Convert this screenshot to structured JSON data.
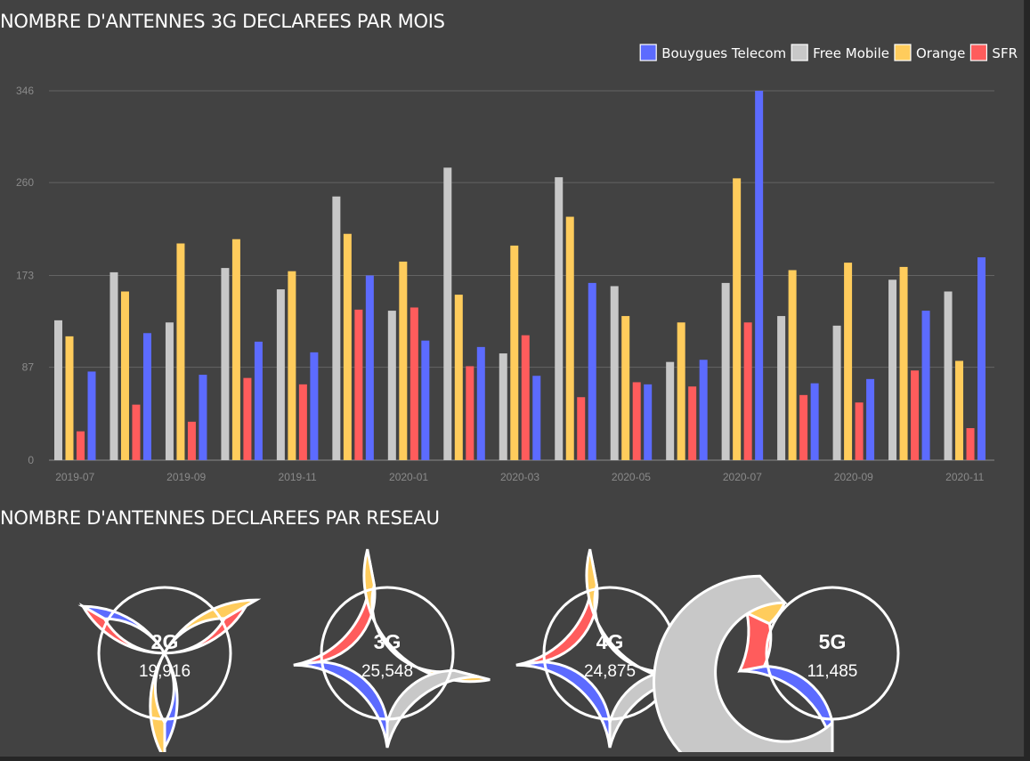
{
  "titles": {
    "bar_section": "NOMBRE D'ANTENNES 3G DECLAREES PAR MOIS",
    "donut_section": "NOMBRE D'ANTENNES DECLAREES PAR RESEAU"
  },
  "chart_data": [
    {
      "type": "bar",
      "title": "NOMBRE D'ANTENNES 3G DECLAREES PAR MOIS",
      "months": [
        "2019-07",
        "2019-08",
        "2019-09",
        "2019-10",
        "2019-11",
        "2019-12",
        "2020-01",
        "2020-02",
        "2020-03",
        "2020-04",
        "2020-05",
        "2020-06",
        "2020-07",
        "2020-08",
        "2020-09",
        "2020-10",
        "2020-11"
      ],
      "x_tick_labels": [
        "2019-07",
        "2019-09",
        "2019-11",
        "2020-01",
        "2020-03",
        "2020-05",
        "2020-07",
        "2020-09",
        "2020-11"
      ],
      "y_ticks": [
        0,
        87,
        173,
        260,
        346
      ],
      "ylim": [
        0,
        346
      ],
      "grid": true,
      "legend_position": "top-right",
      "series": [
        {
          "name": "Free Mobile",
          "color": "#c8c8c8",
          "values": [
            131,
            176,
            129,
            180,
            160,
            247,
            140,
            274,
            100,
            265,
            163,
            92,
            166,
            135,
            126,
            169,
            158
          ]
        },
        {
          "name": "Orange",
          "color": "#ffcc5c",
          "values": [
            116,
            158,
            203,
            207,
            177,
            212,
            186,
            155,
            201,
            228,
            135,
            129,
            264,
            178,
            185,
            181,
            93
          ]
        },
        {
          "name": "SFR",
          "color": "#ff5c5c",
          "values": [
            27,
            52,
            36,
            77,
            71,
            141,
            143,
            88,
            117,
            59,
            73,
            69,
            129,
            61,
            54,
            84,
            30
          ]
        },
        {
          "name": "Bouygues Telecom",
          "color": "#5c6bff",
          "values": [
            83,
            119,
            80,
            111,
            101,
            173,
            112,
            106,
            79,
            166,
            71,
            94,
            346,
            72,
            76,
            140,
            190
          ]
        }
      ],
      "legend_order": [
        "Bouygues Telecom",
        "Free Mobile",
        "Orange",
        "SFR"
      ]
    },
    {
      "type": "pie",
      "subtype": "donut",
      "title": "NOMBRE D'ANTENNES DECLAREES PAR RESEAU",
      "slice_order": [
        "Bouygues Telecom",
        "SFR",
        "Orange",
        "Free Mobile"
      ],
      "colors": {
        "Bouygues Telecom": "#5c6bff",
        "SFR": "#ff5c5c",
        "Orange": "#ffcc5c",
        "Free Mobile": "#c8c8c8"
      },
      "networks": [
        {
          "label": "2G",
          "total": "19,916",
          "shares": [
            0.333,
            0.333,
            0.334,
            0.0
          ],
          "emphasis": "Orange"
        },
        {
          "label": "3G",
          "total": "25,548",
          "shares": [
            0.23,
            0.24,
            0.32,
            0.21
          ],
          "emphasis": "Orange"
        },
        {
          "label": "4G",
          "total": "24,875",
          "shares": [
            0.23,
            0.24,
            0.32,
            0.21
          ],
          "emphasis": "Orange"
        },
        {
          "label": "5G",
          "total": "11,485",
          "shares": [
            0.22,
            0.1,
            0.06,
            0.62
          ],
          "emphasis": "Free Mobile"
        }
      ]
    }
  ]
}
